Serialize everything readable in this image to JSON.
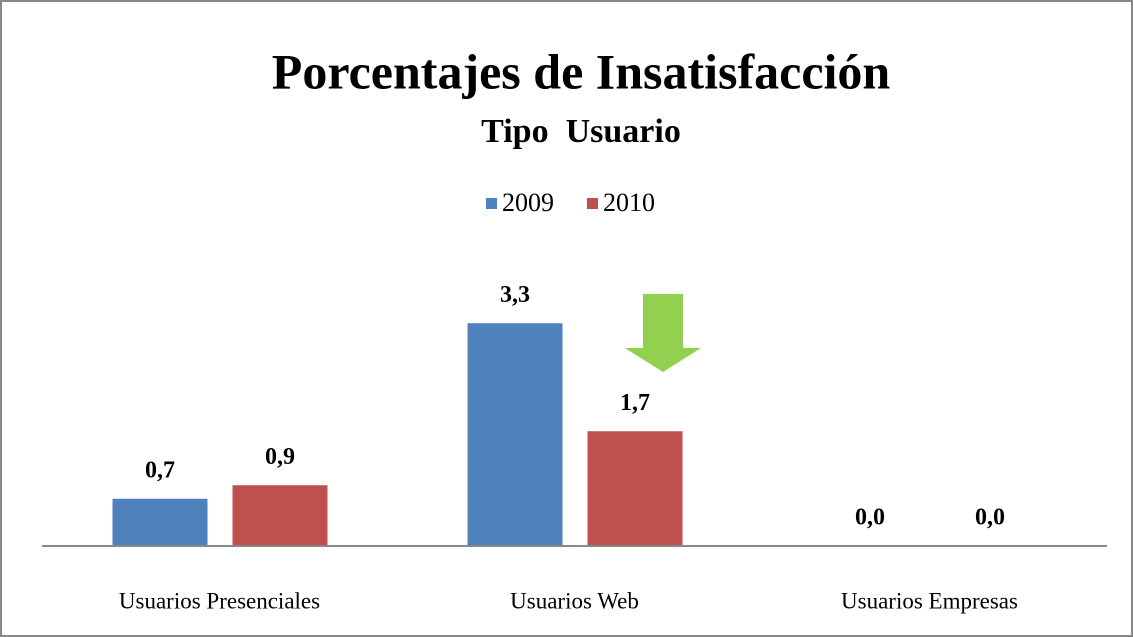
{
  "chart_data": {
    "type": "bar",
    "title": "Porcentajes de Insatisfacción",
    "subtitle": "Tipo  Usuario",
    "categories": [
      "Usuarios Presenciales",
      "Usuarios Web",
      "Usuarios Empresas"
    ],
    "series": [
      {
        "name": "2009",
        "color": "#4f81bd",
        "values": [
          0.7,
          3.3,
          0.0
        ],
        "value_labels": [
          "0,7",
          "3,3",
          "0,0"
        ]
      },
      {
        "name": "2010",
        "color": "#c0504d",
        "values": [
          0.9,
          1.7,
          0.0
        ],
        "value_labels": [
          "0,9",
          "1,7",
          "0,0"
        ]
      }
    ],
    "legend": "top"
  }
}
